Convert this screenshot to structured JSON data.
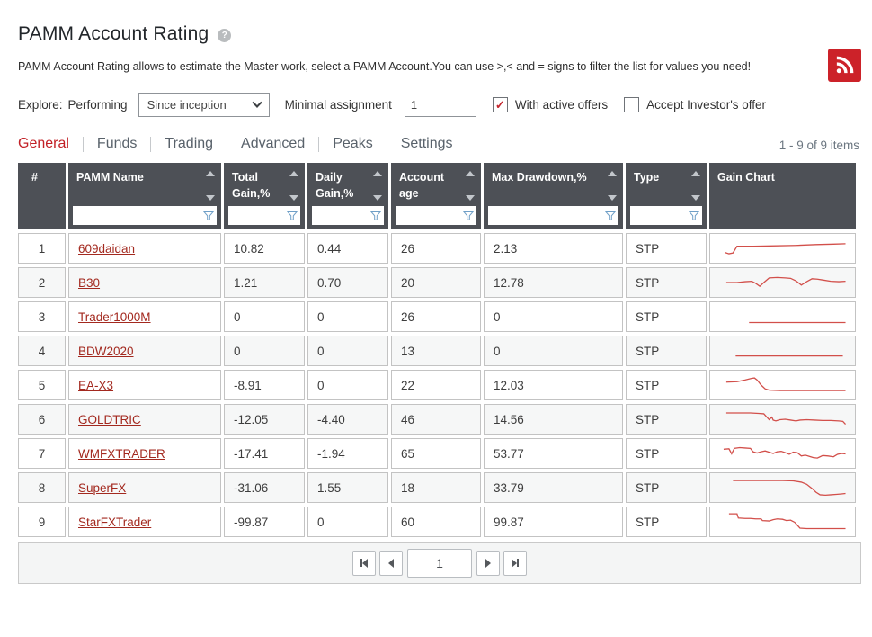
{
  "page": {
    "title": "PAMM Account Rating",
    "description": "PAMM Account Rating allows to estimate the Master work, select a PAMM Account.You can use >,< and = signs to filter the list for values you need!",
    "items_count": "1 - 9 of 9 items"
  },
  "colors": {
    "accent_red": "#c4262e",
    "link_red": "#a3291f",
    "sparkline_red": "#d24f4a",
    "header_bg": "#4d5056",
    "rss_red": "#cc2229"
  },
  "filters": {
    "explore_label": "Explore:",
    "mode_label": "Performing",
    "period_select": {
      "value": "Since inception"
    },
    "minimal_assignment_label": "Minimal assignment",
    "minimal_assignment_value": "1",
    "with_active_offers": {
      "label": "With active offers",
      "checked": true
    },
    "accept_investors_offer": {
      "label": "Accept Investor's offer",
      "checked": false
    }
  },
  "tabs": [
    {
      "label": "General",
      "active": true
    },
    {
      "label": "Funds",
      "active": false
    },
    {
      "label": "Trading",
      "active": false
    },
    {
      "label": "Advanced",
      "active": false
    },
    {
      "label": "Peaks",
      "active": false
    },
    {
      "label": "Settings",
      "active": false
    }
  ],
  "table": {
    "columns": [
      {
        "key": "index",
        "label": "#",
        "sortable": false,
        "filterable": false,
        "center": true
      },
      {
        "key": "name",
        "label": "PAMM Name",
        "sortable": true,
        "filterable": true
      },
      {
        "key": "total_gain",
        "label": "Total Gain,%",
        "sortable": true,
        "filterable": true
      },
      {
        "key": "daily_gain",
        "label": "Daily Gain,%",
        "sortable": true,
        "filterable": true
      },
      {
        "key": "account_age",
        "label": "Account age",
        "sortable": true,
        "filterable": true
      },
      {
        "key": "max_drawdown",
        "label": "Max Drawdown,%",
        "sortable": true,
        "filterable": true
      },
      {
        "key": "type",
        "label": "Type",
        "sortable": true,
        "filterable": true
      },
      {
        "key": "gain_chart",
        "label": "Gain Chart",
        "sortable": false,
        "filterable": false
      }
    ],
    "rows": [
      {
        "index": "1",
        "name": "609daidan",
        "total_gain": "10.82",
        "daily_gain": "0.44",
        "account_age": "26",
        "max_drawdown": "2.13",
        "type": "STP",
        "chart": [
          [
            7,
            20
          ],
          [
            10,
            21.5
          ],
          [
            13,
            20.5
          ],
          [
            16,
            12.5
          ],
          [
            28,
            12.5
          ],
          [
            45,
            12
          ],
          [
            60,
            11.5
          ],
          [
            75,
            10.5
          ],
          [
            88,
            10
          ],
          [
            97,
            9.5
          ]
        ]
      },
      {
        "index": "2",
        "name": "B30",
        "total_gain": "1.21",
        "daily_gain": "0.70",
        "account_age": "20",
        "max_drawdown": "12.78",
        "type": "STP",
        "chart": [
          [
            8,
            15
          ],
          [
            16,
            15
          ],
          [
            22,
            14
          ],
          [
            27,
            13.5
          ],
          [
            30,
            16
          ],
          [
            33,
            19.5
          ],
          [
            36,
            15
          ],
          [
            40,
            9.5
          ],
          [
            46,
            9
          ],
          [
            52,
            9.5
          ],
          [
            56,
            10
          ],
          [
            60,
            13
          ],
          [
            64,
            18
          ],
          [
            68,
            14
          ],
          [
            72,
            10.5
          ],
          [
            76,
            11
          ],
          [
            80,
            12
          ],
          [
            86,
            13.5
          ],
          [
            92,
            14
          ],
          [
            97,
            13.5
          ]
        ]
      },
      {
        "index": "3",
        "name": "Trader1000M",
        "total_gain": "0",
        "daily_gain": "0",
        "account_age": "26",
        "max_drawdown": "0",
        "type": "STP",
        "chart": [
          [
            25,
            22
          ],
          [
            97,
            22
          ]
        ]
      },
      {
        "index": "4",
        "name": "BDW2020",
        "total_gain": "0",
        "daily_gain": "0",
        "account_age": "13",
        "max_drawdown": "0",
        "type": "STP",
        "chart": [
          [
            15,
            21
          ],
          [
            95,
            21
          ]
        ]
      },
      {
        "index": "5",
        "name": "EA-X3",
        "total_gain": "-8.91",
        "daily_gain": "0",
        "account_age": "22",
        "max_drawdown": "12.03",
        "type": "STP",
        "chart": [
          [
            8,
            11.5
          ],
          [
            16,
            11
          ],
          [
            22,
            9
          ],
          [
            27,
            7
          ],
          [
            29,
            6.5
          ],
          [
            31,
            9
          ],
          [
            34,
            15
          ],
          [
            37,
            19.5
          ],
          [
            40,
            21
          ],
          [
            48,
            21.5
          ],
          [
            97,
            21.5
          ]
        ]
      },
      {
        "index": "6",
        "name": "GOLDTRIC",
        "total_gain": "-12.05",
        "daily_gain": "-4.40",
        "account_age": "46",
        "max_drawdown": "14.56",
        "type": "STP",
        "chart": [
          [
            8,
            7.5
          ],
          [
            26,
            7.5
          ],
          [
            32,
            8
          ],
          [
            36,
            8.5
          ],
          [
            38,
            12
          ],
          [
            40,
            15.5
          ],
          [
            42,
            12.5
          ],
          [
            43,
            16
          ],
          [
            45,
            17
          ],
          [
            48,
            15.5
          ],
          [
            52,
            15
          ],
          [
            56,
            16
          ],
          [
            60,
            17
          ],
          [
            63,
            16
          ],
          [
            68,
            15.5
          ],
          [
            74,
            16
          ],
          [
            80,
            16.5
          ],
          [
            86,
            16.5
          ],
          [
            92,
            17
          ],
          [
            95,
            17.5
          ],
          [
            97,
            21
          ]
        ]
      },
      {
        "index": "7",
        "name": "WMFXTRADER",
        "total_gain": "-17.41",
        "daily_gain": "-1.94",
        "account_age": "65",
        "max_drawdown": "53.77",
        "type": "STP",
        "chart": [
          [
            6,
            10
          ],
          [
            10,
            9.5
          ],
          [
            12,
            15.5
          ],
          [
            14,
            9
          ],
          [
            18,
            8
          ],
          [
            22,
            8.5
          ],
          [
            26,
            9
          ],
          [
            28,
            13
          ],
          [
            31,
            14.5
          ],
          [
            34,
            13
          ],
          [
            37,
            12
          ],
          [
            40,
            13.5
          ],
          [
            43,
            15
          ],
          [
            46,
            13
          ],
          [
            49,
            12.5
          ],
          [
            52,
            14
          ],
          [
            55,
            16
          ],
          [
            58,
            13.5
          ],
          [
            61,
            14
          ],
          [
            64,
            18
          ],
          [
            67,
            17
          ],
          [
            70,
            18.5
          ],
          [
            73,
            20
          ],
          [
            76,
            20.5
          ],
          [
            80,
            17.5
          ],
          [
            84,
            18
          ],
          [
            88,
            19
          ],
          [
            91,
            16
          ],
          [
            94,
            15
          ],
          [
            97,
            15.5
          ]
        ]
      },
      {
        "index": "8",
        "name": "SuperFX",
        "total_gain": "-31.06",
        "daily_gain": "1.55",
        "account_age": "18",
        "max_drawdown": "33.79",
        "type": "STP",
        "chart": [
          [
            13,
            6.5
          ],
          [
            50,
            6.5
          ],
          [
            58,
            7
          ],
          [
            64,
            8.5
          ],
          [
            68,
            11
          ],
          [
            72,
            16
          ],
          [
            75,
            20.5
          ],
          [
            78,
            23.5
          ],
          [
            82,
            24
          ],
          [
            86,
            23.5
          ],
          [
            90,
            23
          ],
          [
            94,
            22.5
          ],
          [
            97,
            22
          ]
        ]
      },
      {
        "index": "9",
        "name": "StarFXTrader",
        "total_gain": "-99.87",
        "daily_gain": "0",
        "account_age": "60",
        "max_drawdown": "99.87",
        "type": "STP",
        "chart": [
          [
            10,
            5.5
          ],
          [
            16,
            5.5
          ],
          [
            17,
            10.5
          ],
          [
            22,
            11
          ],
          [
            26,
            11
          ],
          [
            30,
            11.5
          ],
          [
            34,
            11.5
          ],
          [
            35,
            13.5
          ],
          [
            40,
            14
          ],
          [
            43,
            12.5
          ],
          [
            46,
            11.5
          ],
          [
            50,
            12
          ],
          [
            53,
            13.5
          ],
          [
            56,
            13
          ],
          [
            59,
            15.5
          ],
          [
            61,
            19
          ],
          [
            63,
            22.5
          ],
          [
            68,
            23
          ],
          [
            97,
            23
          ]
        ]
      }
    ]
  },
  "pagination": {
    "first_icon": "first-page-icon",
    "prev_icon": "previous-page-icon",
    "page_value": "1",
    "next_icon": "next-page-icon",
    "last_icon": "last-page-icon"
  }
}
